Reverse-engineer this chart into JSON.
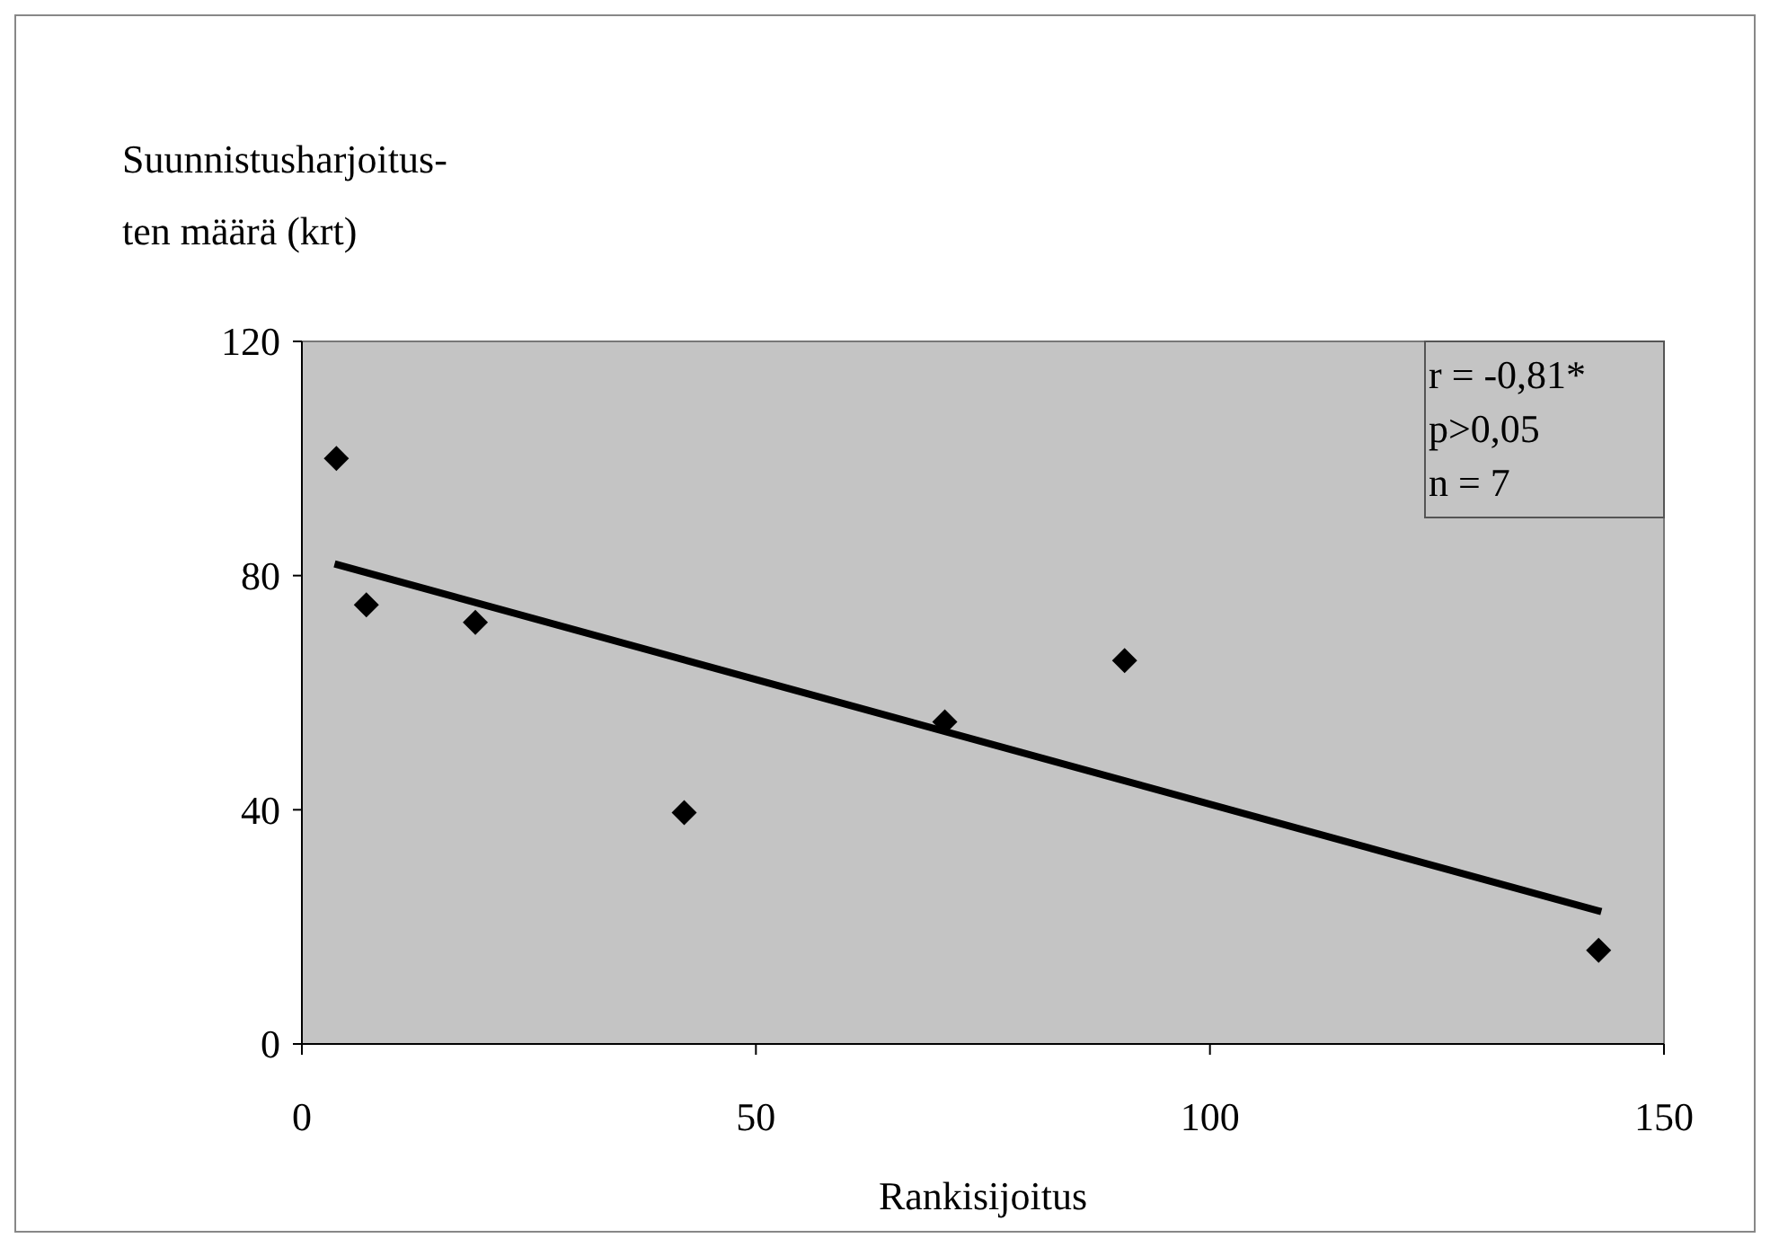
{
  "chart_data": {
    "type": "scatter",
    "ylabel": "Suunnistusharjoitus-\nten määrä (krt)",
    "xlabel": "Rankisijoitus",
    "xlim": [
      0,
      150
    ],
    "xticks": [
      0,
      50,
      100,
      150
    ],
    "ylim": [
      0,
      120
    ],
    "yticks": [
      0,
      40,
      80,
      120
    ],
    "series": [
      {
        "color": "#000000",
        "marker": "diamond",
        "x": [
          3.8,
          7.1,
          19.1,
          42.1,
          70.8,
          90.6,
          142.8
        ],
        "values": [
          100,
          75,
          72,
          39.5,
          55,
          65.5,
          16
        ]
      },
      {
        "type": "line",
        "color": "#000000",
        "line_style": "solid",
        "marker": "none",
        "x": [
          3.6,
          143.1
        ],
        "values": [
          82,
          22.6
        ]
      }
    ],
    "annotations": [
      "r = -0,81*",
      "p>0,05",
      "n = 7"
    ],
    "grid": false
  }
}
